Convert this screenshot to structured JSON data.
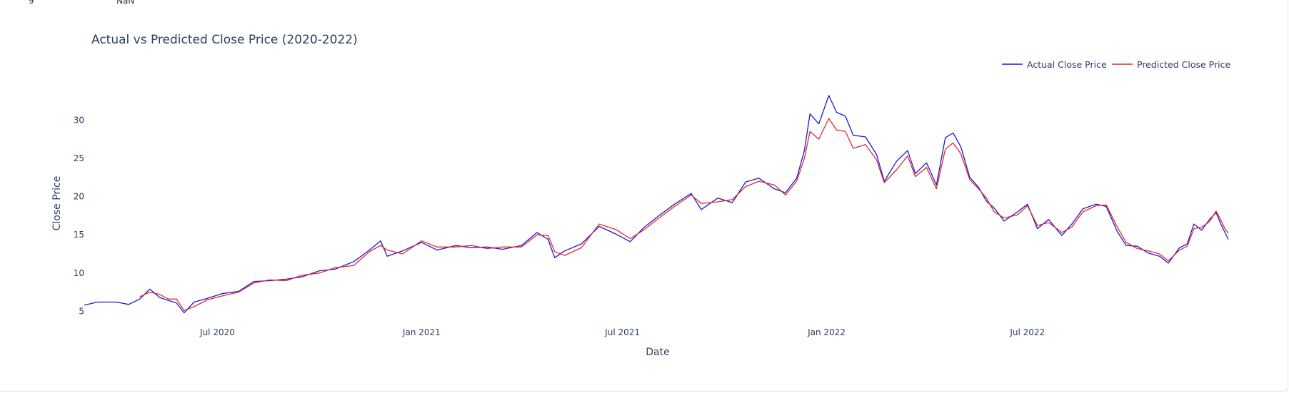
{
  "output_row": {
    "index": "9",
    "value": "NaN"
  },
  "chart_data": {
    "type": "line",
    "title": "Actual vs Predicted Close Price (2020-2022)",
    "xlabel": "Date",
    "ylabel": "Close Price",
    "ylim": [
      4.2,
      34.5
    ],
    "y_ticks": [
      5,
      10,
      15,
      20,
      25,
      30
    ],
    "x_range": [
      "2020-03-03",
      "2022-12-29"
    ],
    "x_ticks": [
      {
        "date": "2020-07-01",
        "label": "Jul 2020"
      },
      {
        "date": "2021-01-01",
        "label": "Jan 2021"
      },
      {
        "date": "2021-07-01",
        "label": "Jul 2021"
      },
      {
        "date": "2022-01-01",
        "label": "Jan 2022"
      },
      {
        "date": "2022-07-01",
        "label": "Jul 2022"
      }
    ],
    "grid": false,
    "legend_placement": "top-right",
    "series": [
      {
        "name": "Actual Close Price",
        "color": "#1f16d6",
        "points": [
          [
            "2020-03-03",
            5.8
          ],
          [
            "2020-03-15",
            6.2
          ],
          [
            "2020-04-01",
            6.2
          ],
          [
            "2020-04-12",
            5.9
          ],
          [
            "2020-04-22",
            6.6
          ],
          [
            "2020-05-01",
            7.9
          ],
          [
            "2020-05-10",
            6.8
          ],
          [
            "2020-05-18",
            6.4
          ],
          [
            "2020-05-25",
            6.1
          ],
          [
            "2020-06-01",
            4.8
          ],
          [
            "2020-06-10",
            6.2
          ],
          [
            "2020-06-22",
            6.7
          ],
          [
            "2020-07-05",
            7.3
          ],
          [
            "2020-07-20",
            7.6
          ],
          [
            "2020-08-03",
            8.9
          ],
          [
            "2020-08-17",
            9.0
          ],
          [
            "2020-09-01",
            9.2
          ],
          [
            "2020-09-15",
            9.5
          ],
          [
            "2020-10-01",
            10.3
          ],
          [
            "2020-10-15",
            10.5
          ],
          [
            "2020-11-01",
            11.5
          ],
          [
            "2020-11-15",
            13.0
          ],
          [
            "2020-11-25",
            14.2
          ],
          [
            "2020-12-01",
            12.2
          ],
          [
            "2020-12-15",
            12.9
          ],
          [
            "2021-01-01",
            14.0
          ],
          [
            "2021-01-15",
            13.0
          ],
          [
            "2021-02-01",
            13.6
          ],
          [
            "2021-02-15",
            13.3
          ],
          [
            "2021-03-01",
            13.4
          ],
          [
            "2021-03-15",
            13.1
          ],
          [
            "2021-04-01",
            13.6
          ],
          [
            "2021-04-15",
            15.3
          ],
          [
            "2021-04-25",
            14.4
          ],
          [
            "2021-05-01",
            12.0
          ],
          [
            "2021-05-10",
            12.9
          ],
          [
            "2021-05-25",
            13.8
          ],
          [
            "2021-06-10",
            16.1
          ],
          [
            "2021-06-25",
            15.1
          ],
          [
            "2021-07-08",
            14.1
          ],
          [
            "2021-07-20",
            15.9
          ],
          [
            "2021-08-03",
            17.5
          ],
          [
            "2021-08-17",
            19.0
          ],
          [
            "2021-09-01",
            20.4
          ],
          [
            "2021-09-10",
            18.3
          ],
          [
            "2021-09-25",
            19.8
          ],
          [
            "2021-10-08",
            19.2
          ],
          [
            "2021-10-20",
            21.9
          ],
          [
            "2021-11-01",
            22.4
          ],
          [
            "2021-11-15",
            21.0
          ],
          [
            "2021-11-25",
            20.5
          ],
          [
            "2021-12-05",
            22.4
          ],
          [
            "2021-12-12",
            26.0
          ],
          [
            "2021-12-17",
            30.8
          ],
          [
            "2021-12-25",
            29.5
          ],
          [
            "2022-01-03",
            33.2
          ],
          [
            "2022-01-10",
            31.0
          ],
          [
            "2022-01-18",
            30.5
          ],
          [
            "2022-01-25",
            28.0
          ],
          [
            "2022-02-05",
            27.8
          ],
          [
            "2022-02-15",
            25.5
          ],
          [
            "2022-02-22",
            22.0
          ],
          [
            "2022-03-05",
            24.6
          ],
          [
            "2022-03-15",
            26.0
          ],
          [
            "2022-03-22",
            23.0
          ],
          [
            "2022-04-01",
            24.4
          ],
          [
            "2022-04-10",
            21.5
          ],
          [
            "2022-04-18",
            27.7
          ],
          [
            "2022-04-25",
            28.3
          ],
          [
            "2022-05-02",
            26.5
          ],
          [
            "2022-05-10",
            22.5
          ],
          [
            "2022-05-18",
            21.2
          ],
          [
            "2022-05-25",
            19.4
          ],
          [
            "2022-06-01",
            18.5
          ],
          [
            "2022-06-10",
            16.8
          ],
          [
            "2022-06-22",
            18.0
          ],
          [
            "2022-07-01",
            19.0
          ],
          [
            "2022-07-10",
            15.8
          ],
          [
            "2022-07-20",
            17.0
          ],
          [
            "2022-08-01",
            14.9
          ],
          [
            "2022-08-10",
            16.4
          ],
          [
            "2022-08-20",
            18.4
          ],
          [
            "2022-09-01",
            19.0
          ],
          [
            "2022-09-10",
            18.7
          ],
          [
            "2022-09-20",
            15.4
          ],
          [
            "2022-09-28",
            13.6
          ],
          [
            "2022-10-08",
            13.5
          ],
          [
            "2022-10-18",
            12.6
          ],
          [
            "2022-10-28",
            12.2
          ],
          [
            "2022-11-05",
            11.3
          ],
          [
            "2022-11-15",
            13.3
          ],
          [
            "2022-11-22",
            13.8
          ],
          [
            "2022-11-28",
            16.4
          ],
          [
            "2022-12-05",
            15.6
          ],
          [
            "2022-12-12",
            17.0
          ],
          [
            "2022-12-18",
            17.9
          ],
          [
            "2022-12-22",
            16.5
          ],
          [
            "2022-12-26",
            15.3
          ],
          [
            "2022-12-29",
            14.4
          ]
        ]
      },
      {
        "name": "Predicted Close Price",
        "color": "#e02a2a",
        "points": [
          [
            "2020-04-22",
            6.9
          ],
          [
            "2020-05-01",
            7.5
          ],
          [
            "2020-05-10",
            7.2
          ],
          [
            "2020-05-18",
            6.6
          ],
          [
            "2020-05-25",
            6.6
          ],
          [
            "2020-06-01",
            5.1
          ],
          [
            "2020-06-10",
            5.6
          ],
          [
            "2020-06-22",
            6.5
          ],
          [
            "2020-07-05",
            7.0
          ],
          [
            "2020-07-20",
            7.5
          ],
          [
            "2020-08-03",
            8.7
          ],
          [
            "2020-08-17",
            9.1
          ],
          [
            "2020-09-01",
            9.0
          ],
          [
            "2020-09-15",
            9.7
          ],
          [
            "2020-10-01",
            10.0
          ],
          [
            "2020-10-15",
            10.7
          ],
          [
            "2020-11-01",
            11.0
          ],
          [
            "2020-11-15",
            12.8
          ],
          [
            "2020-11-25",
            13.6
          ],
          [
            "2020-12-01",
            13.0
          ],
          [
            "2020-12-15",
            12.5
          ],
          [
            "2021-01-01",
            14.2
          ],
          [
            "2021-01-15",
            13.4
          ],
          [
            "2021-02-01",
            13.4
          ],
          [
            "2021-02-15",
            13.6
          ],
          [
            "2021-03-01",
            13.2
          ],
          [
            "2021-03-15",
            13.4
          ],
          [
            "2021-04-01",
            13.4
          ],
          [
            "2021-04-15",
            15.0
          ],
          [
            "2021-04-25",
            14.9
          ],
          [
            "2021-05-01",
            12.8
          ],
          [
            "2021-05-10",
            12.3
          ],
          [
            "2021-05-25",
            13.3
          ],
          [
            "2021-06-10",
            16.4
          ],
          [
            "2021-06-25",
            15.7
          ],
          [
            "2021-07-08",
            14.5
          ],
          [
            "2021-07-20",
            15.6
          ],
          [
            "2021-08-03",
            17.2
          ],
          [
            "2021-08-17",
            18.7
          ],
          [
            "2021-09-01",
            20.2
          ],
          [
            "2021-09-10",
            19.1
          ],
          [
            "2021-09-25",
            19.3
          ],
          [
            "2021-10-08",
            19.6
          ],
          [
            "2021-10-20",
            21.3
          ],
          [
            "2021-11-01",
            22.0
          ],
          [
            "2021-11-15",
            21.5
          ],
          [
            "2021-11-25",
            20.2
          ],
          [
            "2021-12-05",
            22.0
          ],
          [
            "2021-12-12",
            25.0
          ],
          [
            "2021-12-17",
            28.5
          ],
          [
            "2021-12-25",
            27.5
          ],
          [
            "2022-01-03",
            30.2
          ],
          [
            "2022-01-10",
            28.7
          ],
          [
            "2022-01-18",
            28.5
          ],
          [
            "2022-01-25",
            26.3
          ],
          [
            "2022-02-05",
            26.8
          ],
          [
            "2022-02-15",
            24.8
          ],
          [
            "2022-02-22",
            21.8
          ],
          [
            "2022-03-05",
            23.5
          ],
          [
            "2022-03-15",
            25.3
          ],
          [
            "2022-03-22",
            22.6
          ],
          [
            "2022-04-01",
            23.8
          ],
          [
            "2022-04-10",
            21.0
          ],
          [
            "2022-04-18",
            26.2
          ],
          [
            "2022-04-25",
            27.0
          ],
          [
            "2022-05-02",
            25.6
          ],
          [
            "2022-05-10",
            22.2
          ],
          [
            "2022-05-18",
            21.0
          ],
          [
            "2022-05-25",
            19.8
          ],
          [
            "2022-06-01",
            18.0
          ],
          [
            "2022-06-10",
            17.2
          ],
          [
            "2022-06-22",
            17.6
          ],
          [
            "2022-07-01",
            18.8
          ],
          [
            "2022-07-10",
            16.2
          ],
          [
            "2022-07-20",
            16.6
          ],
          [
            "2022-08-01",
            15.3
          ],
          [
            "2022-08-10",
            16.0
          ],
          [
            "2022-08-20",
            18.0
          ],
          [
            "2022-09-01",
            18.8
          ],
          [
            "2022-09-10",
            18.9
          ],
          [
            "2022-09-20",
            16.0
          ],
          [
            "2022-09-28",
            14.0
          ],
          [
            "2022-10-08",
            13.2
          ],
          [
            "2022-10-18",
            12.9
          ],
          [
            "2022-10-28",
            12.5
          ],
          [
            "2022-11-05",
            11.6
          ],
          [
            "2022-11-15",
            13.0
          ],
          [
            "2022-11-22",
            13.5
          ],
          [
            "2022-11-28",
            15.8
          ],
          [
            "2022-12-05",
            16.0
          ],
          [
            "2022-12-12",
            16.7
          ],
          [
            "2022-12-18",
            18.1
          ],
          [
            "2022-12-22",
            17.0
          ],
          [
            "2022-12-26",
            15.8
          ],
          [
            "2022-12-29",
            15.2
          ]
        ]
      }
    ]
  }
}
